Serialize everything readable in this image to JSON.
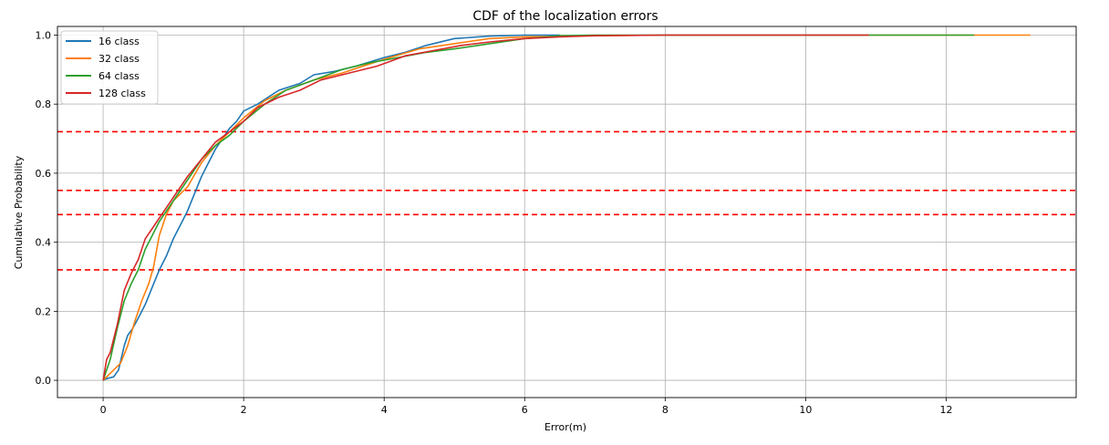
{
  "chart_data": {
    "type": "line",
    "title": "CDF of the localization errors",
    "xlabel": "Error(m)",
    "ylabel": "Cumulative Probability",
    "xlim": [
      -0.65,
      13.85
    ],
    "ylim": [
      -0.05,
      1.025
    ],
    "xticks": [
      0,
      2,
      4,
      6,
      8,
      10,
      12
    ],
    "xtick_labels": [
      "0",
      "2",
      "4",
      "6",
      "8",
      "10",
      "12"
    ],
    "yticks": [
      0.0,
      0.2,
      0.4,
      0.6,
      0.8,
      1.0
    ],
    "ytick_labels": [
      "0.0",
      "0.2",
      "0.4",
      "0.6",
      "0.8",
      "1.0"
    ],
    "grid": true,
    "legend_position": "top-left",
    "series": [
      {
        "name": "16 class",
        "color": "#1f77b4",
        "x": [
          0,
          0.05,
          0.15,
          0.22,
          0.3,
          0.35,
          0.42,
          0.5,
          0.6,
          0.7,
          0.8,
          0.9,
          1.0,
          1.1,
          1.2,
          1.3,
          1.4,
          1.5,
          1.6,
          1.7,
          1.8,
          1.9,
          2.0,
          2.2,
          2.5,
          2.8,
          3.0,
          3.3,
          3.6,
          4.0,
          4.3,
          4.6,
          5.0,
          5.5,
          6.0,
          6.5
        ],
        "y": [
          0.0,
          0.005,
          0.01,
          0.03,
          0.1,
          0.13,
          0.15,
          0.18,
          0.22,
          0.27,
          0.32,
          0.36,
          0.41,
          0.45,
          0.49,
          0.54,
          0.59,
          0.63,
          0.67,
          0.7,
          0.73,
          0.75,
          0.78,
          0.8,
          0.84,
          0.86,
          0.885,
          0.895,
          0.91,
          0.935,
          0.95,
          0.97,
          0.99,
          0.997,
          1.0,
          1.0
        ]
      },
      {
        "name": "32 class",
        "color": "#ff7f0e",
        "x": [
          0,
          0.05,
          0.15,
          0.25,
          0.35,
          0.45,
          0.55,
          0.65,
          0.72,
          0.8,
          0.9,
          1.0,
          1.2,
          1.4,
          1.6,
          1.8,
          2.0,
          2.3,
          2.6,
          3.0,
          3.4,
          3.7,
          4.0,
          4.5,
          5.0,
          5.5,
          6.0,
          7.0,
          8.0,
          10.0,
          12.0,
          13.2
        ],
        "y": [
          0.0,
          0.01,
          0.03,
          0.05,
          0.1,
          0.17,
          0.23,
          0.28,
          0.33,
          0.42,
          0.48,
          0.52,
          0.56,
          0.63,
          0.68,
          0.72,
          0.76,
          0.81,
          0.84,
          0.87,
          0.89,
          0.91,
          0.93,
          0.96,
          0.975,
          0.99,
          0.995,
          0.998,
          1.0,
          1.0,
          1.0,
          1.0
        ]
      },
      {
        "name": "64 class",
        "color": "#2ca02c",
        "x": [
          0,
          0.05,
          0.1,
          0.2,
          0.3,
          0.4,
          0.5,
          0.6,
          0.7,
          0.8,
          0.9,
          1.0,
          1.2,
          1.4,
          1.6,
          1.8,
          2.0,
          2.3,
          2.6,
          3.0,
          3.4,
          3.8,
          4.2,
          4.6,
          5.0,
          5.5,
          6.0,
          6.5,
          7.0,
          8.0,
          10.0,
          12.4
        ],
        "y": [
          0.0,
          0.03,
          0.06,
          0.15,
          0.23,
          0.28,
          0.32,
          0.38,
          0.42,
          0.46,
          0.49,
          0.52,
          0.58,
          0.64,
          0.68,
          0.71,
          0.75,
          0.8,
          0.84,
          0.87,
          0.9,
          0.92,
          0.935,
          0.95,
          0.96,
          0.975,
          0.99,
          0.998,
          1.0,
          1.0,
          1.0,
          1.0
        ]
      },
      {
        "name": "128 class",
        "color": "#d62728",
        "x": [
          0,
          0.05,
          0.1,
          0.2,
          0.3,
          0.4,
          0.5,
          0.6,
          0.7,
          0.8,
          0.9,
          1.0,
          1.2,
          1.4,
          1.6,
          1.8,
          2.0,
          2.2,
          2.5,
          2.8,
          3.1,
          3.5,
          3.9,
          4.3,
          4.7,
          5.1,
          5.5,
          6.0,
          6.5,
          7.0,
          8.0,
          9.0,
          10.0,
          10.9
        ],
        "y": [
          0.0,
          0.06,
          0.08,
          0.16,
          0.26,
          0.31,
          0.35,
          0.41,
          0.44,
          0.47,
          0.5,
          0.53,
          0.59,
          0.64,
          0.69,
          0.72,
          0.75,
          0.79,
          0.82,
          0.84,
          0.87,
          0.89,
          0.91,
          0.94,
          0.955,
          0.97,
          0.98,
          0.99,
          0.995,
          0.998,
          1.0,
          1.0,
          1.0,
          1.0
        ]
      }
    ],
    "reference_lines": [
      {
        "y": 0.72,
        "color": "#ff0000",
        "style": "dashed"
      },
      {
        "y": 0.55,
        "color": "#ff0000",
        "style": "dashed"
      },
      {
        "y": 0.48,
        "color": "#ff0000",
        "style": "dashed"
      },
      {
        "y": 0.32,
        "color": "#ff0000",
        "style": "dashed"
      }
    ]
  }
}
